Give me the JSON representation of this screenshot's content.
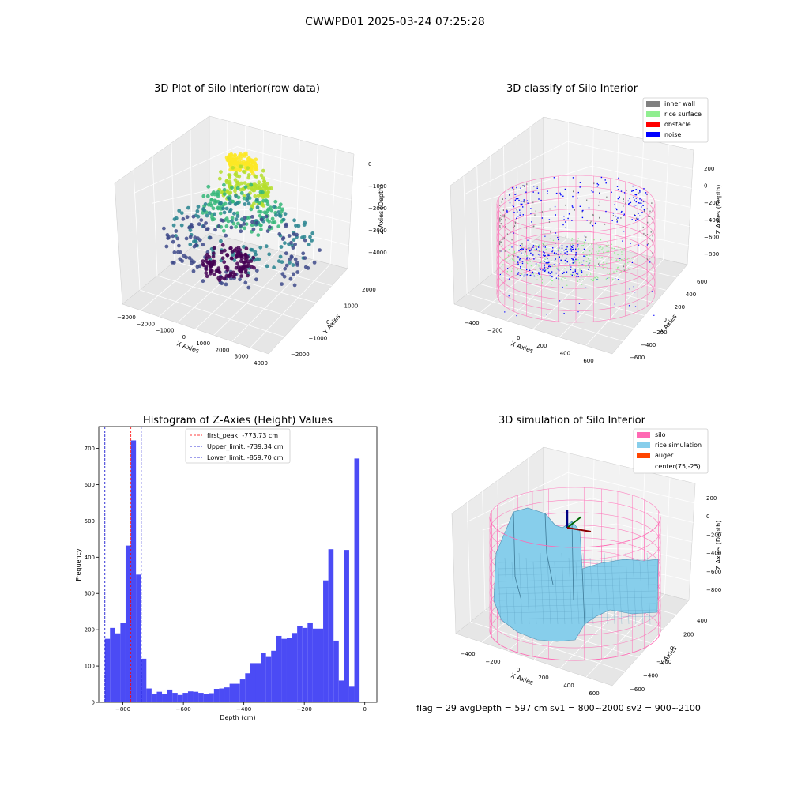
{
  "figure": {
    "suptitle": "CWWPD01 2025-03-24 07:25:28",
    "status_text": "flag = 29  avgDepth = 597 cm  sv1 = 800~2000  sv2 = 900~2100"
  },
  "colors": {
    "histogram_bar": "#4b4bf5",
    "first_peak_line": "#ff0000",
    "limit_lines": "#0000cc",
    "inner_wall": "#808080",
    "rice_surface": "#90ee90",
    "obstacle": "#ff0000",
    "noise": "#0000ff",
    "silo": "#ff69b4",
    "rice_simulation": "#87ceeb",
    "auger": "#ff4500",
    "pane_left": "#ebebeb",
    "pane_right": "#f2f2f2",
    "pane_floor": "#e6e6e6"
  },
  "chart_data": [
    {
      "type": "scatter",
      "projection": "3d",
      "title": "3D Plot of Silo Interior(row data)",
      "xlabel": "X Axies",
      "ylabel": "Y Axies",
      "zlabel": "Z Axies (Depth)",
      "xticks": [
        "−3000",
        "−2000",
        "−1000",
        "0",
        "1000",
        "2000",
        "3000",
        "4000"
      ],
      "yticks": [
        "−2000",
        "−1000",
        "0",
        "1000",
        "2000"
      ],
      "zticks": [
        "−4000",
        "−3000",
        "−2000",
        "−1000",
        "0"
      ],
      "colormap": "viridis",
      "point_groups": [
        {
          "x_range": [
            -600,
            600
          ],
          "y_range": [
            -300,
            400
          ],
          "z_range": [
            -500,
            -100
          ],
          "color": "#fde725"
        },
        {
          "x_range": [
            -900,
            1200
          ],
          "y_range": [
            -600,
            700
          ],
          "z_range": [
            -1600,
            -700
          ],
          "color": "#b5de2b"
        },
        {
          "x_range": [
            -1600,
            1600
          ],
          "y_range": [
            -1000,
            1100
          ],
          "z_range": [
            -2400,
            -1600
          ],
          "color": "#35b779"
        },
        {
          "x_range": [
            -2600,
            2800
          ],
          "y_range": [
            -1800,
            1800
          ],
          "z_range": [
            -3200,
            -2400
          ],
          "color": "#26828e"
        },
        {
          "x_range": [
            -3000,
            3000
          ],
          "y_range": [
            -2000,
            2000
          ],
          "z_range": [
            -3900,
            -3200
          ],
          "color": "#3e4a89"
        },
        {
          "x_range": [
            -1200,
            600
          ],
          "y_range": [
            -1200,
            600
          ],
          "z_range": [
            -4200,
            -3700
          ],
          "color": "#440154"
        }
      ]
    },
    {
      "type": "scatter",
      "projection": "3d",
      "title": "3D classify of Silo Interior",
      "xlabel": "X Axies",
      "ylabel": "Y Axies",
      "zlabel": "Z Axies (Depth)",
      "xticks": [
        "−400",
        "−200",
        "0",
        "200",
        "400",
        "600"
      ],
      "yticks": [
        "−600",
        "−400",
        "−200",
        "0",
        "200",
        "400",
        "600"
      ],
      "zticks": [
        "−800",
        "−600",
        "−400",
        "−200",
        "0",
        "200"
      ],
      "legend": {
        "loc": "upper right",
        "entries": [
          {
            "label": "inner wall",
            "color": "#808080"
          },
          {
            "label": "rice surface",
            "color": "#90ee90"
          },
          {
            "label": "obstacle",
            "color": "#ff0000"
          },
          {
            "label": "noise",
            "color": "#0000ff"
          }
        ]
      },
      "silo_cylinder": {
        "center": [
          75,
          -25
        ],
        "radius": 550,
        "z_range": [
          -900,
          0
        ]
      }
    },
    {
      "type": "bar",
      "title": "Histogram of Z-Axies (Height) Values",
      "xlabel": "Depth (cm)",
      "ylabel": "Frequency",
      "xlim": [
        -880,
        40
      ],
      "ylim": [
        0,
        760
      ],
      "xticks": [
        -800,
        -600,
        -400,
        -200,
        0
      ],
      "xtick_labels": [
        "−800",
        "−600",
        "−400",
        "−200",
        "0"
      ],
      "yticks": [
        0,
        100,
        200,
        300,
        400,
        500,
        600,
        700
      ],
      "bin_start": -860,
      "bin_width": 17.2,
      "values": [
        175,
        205,
        190,
        218,
        432,
        722,
        352,
        120,
        38,
        24,
        29,
        22,
        35,
        26,
        20,
        26,
        30,
        29,
        26,
        22,
        25,
        37,
        38,
        41,
        51,
        51,
        63,
        80,
        108,
        108,
        135,
        125,
        142,
        183,
        175,
        178,
        191,
        210,
        205,
        220,
        203,
        203,
        336,
        422,
        170,
        60,
        420,
        45,
        672
      ],
      "vlines": [
        {
          "label": "first_peak: -773.73 cm",
          "x": -773.73,
          "color": "#ff0000"
        },
        {
          "label": "Upper_limit: -739.34 cm",
          "x": -739.34,
          "color": "#0000cc"
        },
        {
          "label": "Lower_limit: -859.70 cm",
          "x": -859.7,
          "color": "#0000cc"
        }
      ],
      "legend_loc": "upper center"
    },
    {
      "type": "surface",
      "projection": "3d",
      "title": "3D simulation of Silo Interior",
      "xlabel": "X Axies",
      "ylabel": "Y Axies",
      "zlabel": "Z Axies (Depth)",
      "xticks": [
        "−400",
        "−200",
        "0",
        "200",
        "400",
        "600"
      ],
      "yticks": [
        "−600",
        "−400",
        "−200",
        "0",
        "200",
        "400"
      ],
      "zticks": [
        "−800",
        "−600",
        "−400",
        "−200",
        "0",
        "200"
      ],
      "legend": {
        "loc": "upper right",
        "entries": [
          {
            "label": "silo",
            "color": "#ff69b4"
          },
          {
            "label": "rice simulation",
            "color": "#87ceeb"
          },
          {
            "label": "auger",
            "color": "#ff4500"
          },
          {
            "label": "center(75,-25)",
            "color": "#ffffff"
          }
        ]
      }
    }
  ]
}
